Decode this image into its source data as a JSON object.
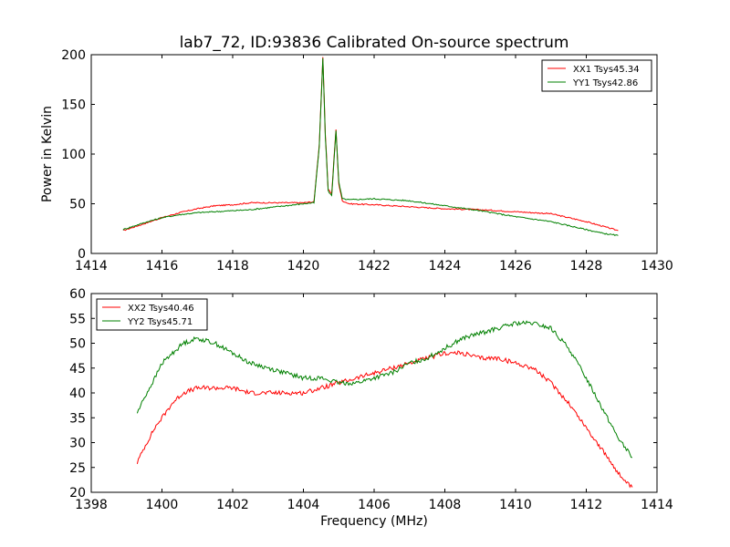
{
  "colors": {
    "red": "#ff0000",
    "green": "#008000"
  },
  "chart_data": [
    {
      "type": "line",
      "title": "lab7_72, ID:93836 Calibrated On-source spectrum",
      "xlabel": "",
      "ylabel": "Power in Kelvin",
      "xlim": [
        1414,
        1430
      ],
      "ylim": [
        0,
        200
      ],
      "xticks": [
        1414,
        1416,
        1418,
        1420,
        1422,
        1424,
        1426,
        1428,
        1430
      ],
      "yticks": [
        0,
        50,
        100,
        150,
        200
      ],
      "legend": "top-right",
      "grid": false,
      "series": [
        {
          "name": "XX1 Tsys45.34",
          "color": "#ff0000",
          "x": [
            1414.9,
            1415.5,
            1416.0,
            1416.5,
            1417.0,
            1417.5,
            1418.0,
            1418.5,
            1419.0,
            1419.5,
            1420.0,
            1420.3,
            1420.45,
            1420.55,
            1420.62,
            1420.7,
            1420.8,
            1420.92,
            1421.0,
            1421.1,
            1421.3,
            1422.0,
            1423.0,
            1424.0,
            1425.0,
            1426.0,
            1427.0,
            1427.5,
            1428.0,
            1428.5,
            1428.9
          ],
          "y": [
            23,
            30,
            36,
            41,
            45,
            48,
            49,
            51,
            51,
            51,
            51,
            52,
            110,
            197,
            120,
            65,
            60,
            125,
            70,
            53,
            50,
            49,
            47,
            45,
            44,
            42,
            40,
            36,
            32,
            27,
            23
          ]
        },
        {
          "name": "YY1 Tsys42.86",
          "color": "#008000",
          "x": [
            1414.9,
            1415.5,
            1416.0,
            1416.5,
            1417.0,
            1417.5,
            1418.0,
            1418.5,
            1419.0,
            1419.5,
            1420.0,
            1420.3,
            1420.45,
            1420.55,
            1420.62,
            1420.7,
            1420.8,
            1420.92,
            1421.0,
            1421.1,
            1421.3,
            1422.0,
            1423.0,
            1424.0,
            1425.0,
            1426.0,
            1427.0,
            1427.5,
            1428.0,
            1428.5,
            1428.9
          ],
          "y": [
            24,
            31,
            36,
            39,
            41,
            42,
            43,
            44,
            46,
            48,
            50,
            51,
            108,
            196,
            118,
            63,
            58,
            124,
            72,
            55,
            54,
            55,
            53,
            48,
            43,
            37,
            32,
            28,
            24,
            20,
            18
          ]
        }
      ]
    },
    {
      "type": "line",
      "title": "",
      "xlabel": "Frequency (MHz)",
      "ylabel": "",
      "xlim": [
        1398,
        1414
      ],
      "ylim": [
        20,
        60
      ],
      "xticks": [
        1398,
        1400,
        1402,
        1404,
        1406,
        1408,
        1410,
        1412,
        1414
      ],
      "yticks": [
        20,
        25,
        30,
        35,
        40,
        45,
        50,
        55,
        60
      ],
      "legend": "top-left",
      "grid": false,
      "series": [
        {
          "name": "XX2 Tsys40.46",
          "color": "#ff0000",
          "x": [
            1399.3,
            1399.5,
            1399.8,
            1400.0,
            1400.3,
            1400.6,
            1401.0,
            1401.5,
            1402.0,
            1402.5,
            1403.0,
            1403.5,
            1404.0,
            1404.5,
            1405.0,
            1405.5,
            1406.0,
            1406.5,
            1407.0,
            1407.5,
            1408.0,
            1408.5,
            1409.0,
            1409.5,
            1410.0,
            1410.5,
            1411.0,
            1411.5,
            1412.0,
            1412.3,
            1412.6,
            1412.9,
            1413.1,
            1413.3
          ],
          "y": [
            26,
            29,
            33,
            35,
            38,
            40,
            41,
            41,
            41,
            40,
            40,
            40,
            40,
            41,
            42,
            43,
            44,
            45,
            46,
            47,
            48,
            48,
            47,
            47,
            46,
            45,
            42,
            38,
            33,
            30,
            27,
            24,
            22,
            21
          ]
        },
        {
          "name": "YY2 Tsys45.71",
          "color": "#008000",
          "x": [
            1399.3,
            1399.5,
            1399.8,
            1400.0,
            1400.3,
            1400.6,
            1401.0,
            1401.5,
            1402.0,
            1402.5,
            1403.0,
            1403.5,
            1404.0,
            1404.5,
            1405.0,
            1405.5,
            1406.0,
            1406.5,
            1407.0,
            1407.5,
            1408.0,
            1408.5,
            1409.0,
            1409.5,
            1410.0,
            1410.5,
            1411.0,
            1411.5,
            1412.0,
            1412.3,
            1412.6,
            1412.9,
            1413.1,
            1413.3
          ],
          "y": [
            36,
            39,
            43,
            46,
            48,
            50,
            51,
            50,
            48,
            46,
            45,
            44,
            43,
            43,
            42,
            42,
            43,
            44,
            46,
            47,
            49,
            51,
            52,
            53,
            54,
            54,
            53,
            49,
            43,
            39,
            35,
            31,
            29,
            27
          ]
        }
      ]
    }
  ]
}
